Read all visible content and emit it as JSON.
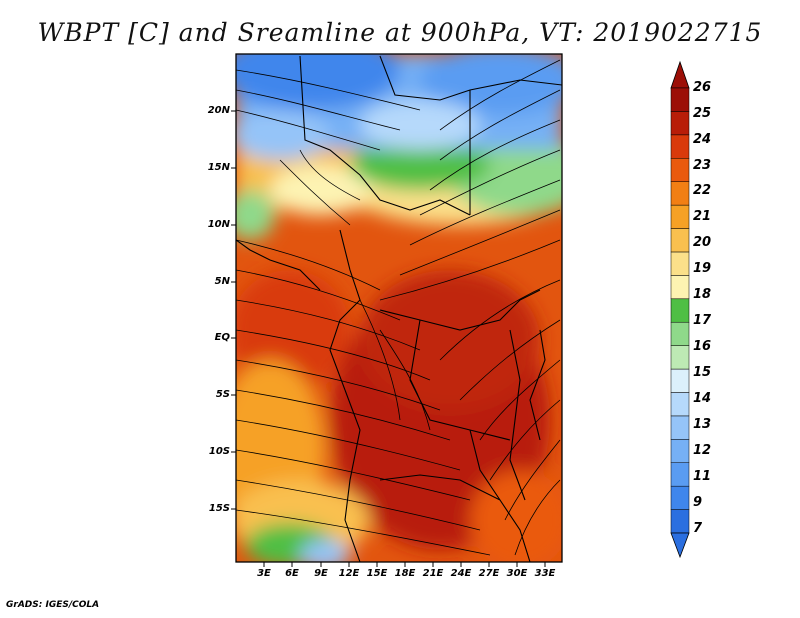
{
  "title": "WBPT [C] and Sreamline at 900hPa, VT: 2019022715",
  "y_ticks": [
    "20N",
    "15N",
    "10N",
    "5N",
    "EQ",
    "5S",
    "10S",
    "15S"
  ],
  "x_ticks": [
    "3E",
    "6E",
    "9E",
    "12E",
    "15E",
    "18E",
    "21E",
    "24E",
    "27E",
    "30E",
    "33E"
  ],
  "colorbar": {
    "labels": [
      "7",
      "9",
      "11",
      "12",
      "13",
      "14",
      "15",
      "16",
      "17",
      "18",
      "19",
      "20",
      "21",
      "22",
      "23",
      "24",
      "25",
      "26"
    ],
    "colors": [
      "#2b6fe0",
      "#3f86ec",
      "#5a9cf2",
      "#76b0f5",
      "#95c4f8",
      "#b6d9fb",
      "#dcf0fb",
      "#bdeab4",
      "#8fd98a",
      "#4fbf44",
      "#fdf3b2",
      "#fbe08a",
      "#f9c04f",
      "#f6a125",
      "#f27f14",
      "#ea5a0e",
      "#d93a0b",
      "#b81d08",
      "#9c0f07"
    ]
  },
  "credit": "GrADS: IGES/COLA"
}
